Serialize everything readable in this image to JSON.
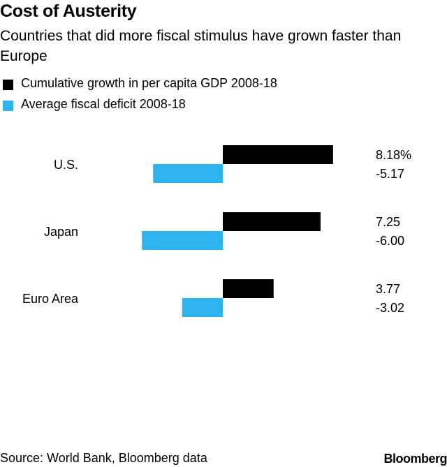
{
  "title": "Cost of Austerity",
  "subtitle": "Countries that did more fiscal stimulus have grown faster than Europe",
  "source": "Source: World Bank, Bloomberg data",
  "brand": "Bloomberg",
  "colors": {
    "growth": "#000000",
    "deficit": "#2db3ee"
  },
  "chart_data": {
    "type": "bar",
    "orientation": "horizontal",
    "title": "Cost of Austerity",
    "subtitle": "Countries that did more fiscal stimulus have grown faster than Europe",
    "categories": [
      "U.S.",
      "Japan",
      "Euro Area"
    ],
    "series": [
      {
        "name": "Cumulative growth in per capita GDP 2008-18",
        "values": [
          8.18,
          7.25,
          3.77
        ],
        "labels": [
          "8.18%",
          "7.25",
          "3.77"
        ],
        "color": "#000000"
      },
      {
        "name": "Average fiscal deficit 2008-18",
        "values": [
          -5.17,
          -6.0,
          -3.02
        ],
        "labels": [
          "-5.17",
          "-6.00",
          "-3.02"
        ],
        "color": "#2db3ee"
      }
    ],
    "xlim": [
      -6.2,
      8.5
    ],
    "legend": "top-left",
    "grid": false
  }
}
